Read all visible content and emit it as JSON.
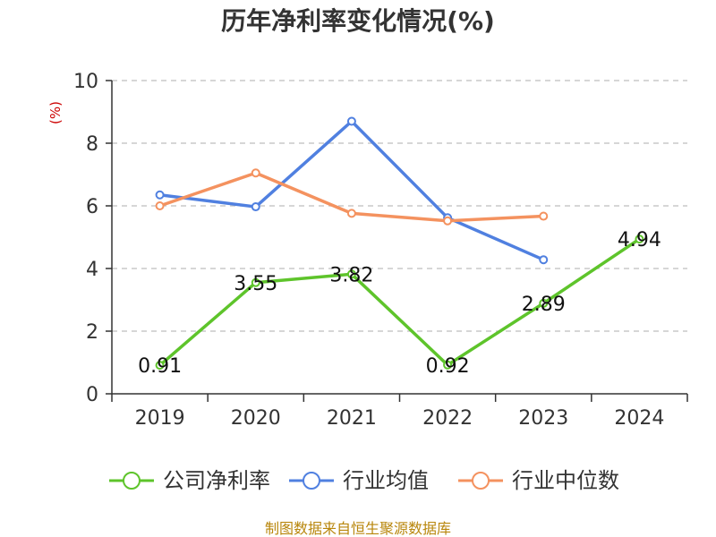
{
  "chart_data": {
    "type": "line",
    "title": "历年净利率变化情况(%)",
    "ylabel": "(%)",
    "xlabel": "",
    "categories": [
      "2019",
      "2020",
      "2021",
      "2022",
      "2023",
      "2024"
    ],
    "ylim": [
      0,
      10
    ],
    "yticks": [
      "0",
      "2",
      "4",
      "6",
      "8",
      "10"
    ],
    "grid": true,
    "legend_position": "bottom",
    "series": [
      {
        "name": "公司净利率",
        "color": "#5ec42b",
        "values": [
          0.91,
          3.55,
          3.82,
          0.92,
          2.89,
          4.94
        ],
        "labels": [
          "0.91",
          "3.55",
          "3.82",
          "0.92",
          "2.89",
          "4.94"
        ]
      },
      {
        "name": "行业均值",
        "color": "#5080e0",
        "values": [
          6.35,
          5.97,
          8.7,
          5.62,
          4.28,
          null
        ]
      },
      {
        "name": "行业中位数",
        "color": "#f4925f",
        "values": [
          6.0,
          7.05,
          5.76,
          5.52,
          5.67,
          null
        ]
      }
    ],
    "source": "制图数据来自恒生聚源数据库"
  }
}
